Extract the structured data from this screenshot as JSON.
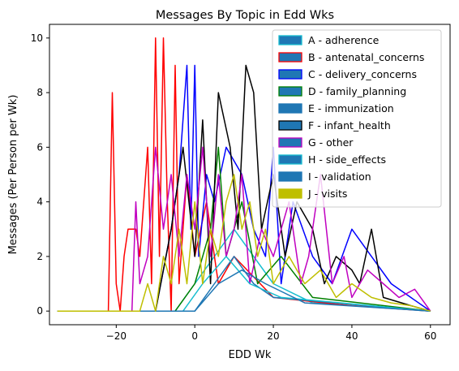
{
  "chart_data": {
    "type": "line",
    "title": "Messages By Topic in Edd Wks",
    "xlabel": "EDD Wk",
    "ylabel": "Messages (Per Person per Wk)",
    "xlim": [
      -37,
      65
    ],
    "ylim": [
      -0.5,
      10.5
    ],
    "xticks": [
      -20,
      0,
      20,
      40,
      60
    ],
    "yticks": [
      0,
      2,
      4,
      6,
      8,
      10
    ],
    "grid": false,
    "legend_position": "top-right",
    "series": [
      {
        "name": "A - adherence",
        "color": "#17becf",
        "fill": "#1f77b4",
        "points": [
          [
            -35,
            0
          ],
          [
            -5,
            0
          ],
          [
            0,
            1
          ],
          [
            5,
            2
          ],
          [
            10,
            3
          ],
          [
            15,
            2
          ],
          [
            20,
            1
          ],
          [
            30,
            0.3
          ],
          [
            60,
            0
          ]
        ]
      },
      {
        "name": "B - antenatal_concerns",
        "color": "#ff0000",
        "fill": "#1f77b4",
        "points": [
          [
            -35,
            0
          ],
          [
            -23,
            0
          ],
          [
            -22,
            0
          ],
          [
            -21,
            8
          ],
          [
            -20,
            1
          ],
          [
            -19,
            0
          ],
          [
            -18,
            2
          ],
          [
            -17,
            3
          ],
          [
            -15,
            3
          ],
          [
            -14,
            2
          ],
          [
            -12,
            6
          ],
          [
            -11,
            1
          ],
          [
            -10,
            10
          ],
          [
            -9,
            2
          ],
          [
            -8,
            10
          ],
          [
            -7,
            4
          ],
          [
            -6,
            0
          ],
          [
            -5,
            9
          ],
          [
            -4,
            1
          ],
          [
            -2,
            5
          ],
          [
            0,
            2
          ],
          [
            3,
            4
          ],
          [
            6,
            1
          ],
          [
            10,
            2
          ],
          [
            20,
            0.5
          ],
          [
            40,
            0.2
          ],
          [
            60,
            0
          ]
        ]
      },
      {
        "name": "C - delivery_concerns",
        "color": "#0000ff",
        "fill": "#1f77b4",
        "points": [
          [
            -35,
            0
          ],
          [
            -10,
            0
          ],
          [
            -6,
            3
          ],
          [
            -4,
            5
          ],
          [
            -2,
            9
          ],
          [
            -1,
            3
          ],
          [
            0,
            9
          ],
          [
            1,
            2
          ],
          [
            3,
            5
          ],
          [
            5,
            4
          ],
          [
            8,
            6
          ],
          [
            12,
            5
          ],
          [
            15,
            3
          ],
          [
            18,
            2
          ],
          [
            20,
            6
          ],
          [
            22,
            1
          ],
          [
            25,
            4
          ],
          [
            30,
            2
          ],
          [
            35,
            1
          ],
          [
            40,
            3
          ],
          [
            45,
            2
          ],
          [
            50,
            1
          ],
          [
            55,
            0.5
          ],
          [
            60,
            0
          ]
        ]
      },
      {
        "name": "D - family_planning",
        "color": "#008000",
        "fill": "#1f77b4",
        "points": [
          [
            -35,
            0
          ],
          [
            -5,
            0
          ],
          [
            0,
            1
          ],
          [
            4,
            3
          ],
          [
            6,
            6
          ],
          [
            8,
            2
          ],
          [
            12,
            4
          ],
          [
            16,
            1
          ],
          [
            22,
            2
          ],
          [
            30,
            0.5
          ],
          [
            60,
            0
          ]
        ]
      },
      {
        "name": "E - immunization",
        "color": "#1f77b4",
        "fill": "#1f77b4",
        "points": [
          [
            -35,
            0
          ],
          [
            0,
            0
          ],
          [
            5,
            1
          ],
          [
            10,
            2
          ],
          [
            15,
            1
          ],
          [
            20,
            0.5
          ],
          [
            60,
            0
          ]
        ]
      },
      {
        "name": "F - infant_health",
        "color": "#000000",
        "fill": "#1f77b4",
        "points": [
          [
            -35,
            0
          ],
          [
            -10,
            0
          ],
          [
            -6,
            3
          ],
          [
            -3,
            6
          ],
          [
            0,
            2
          ],
          [
            2,
            7
          ],
          [
            4,
            1
          ],
          [
            6,
            8
          ],
          [
            9,
            6
          ],
          [
            11,
            3
          ],
          [
            13,
            9
          ],
          [
            15,
            8
          ],
          [
            17,
            3
          ],
          [
            20,
            5
          ],
          [
            23,
            2
          ],
          [
            26,
            4
          ],
          [
            30,
            3
          ],
          [
            33,
            1
          ],
          [
            36,
            2
          ],
          [
            40,
            1.5
          ],
          [
            42,
            1
          ],
          [
            45,
            3
          ],
          [
            48,
            0.5
          ],
          [
            55,
            0.2
          ],
          [
            60,
            0
          ]
        ]
      },
      {
        "name": "G - other",
        "color": "#c000c0",
        "fill": "#1f77b4",
        "points": [
          [
            -35,
            0
          ],
          [
            -16,
            0
          ],
          [
            -15,
            4
          ],
          [
            -14,
            1
          ],
          [
            -12,
            2
          ],
          [
            -10,
            6
          ],
          [
            -8,
            3
          ],
          [
            -6,
            5
          ],
          [
            -4,
            2
          ],
          [
            -2,
            5
          ],
          [
            0,
            3
          ],
          [
            2,
            6
          ],
          [
            4,
            2
          ],
          [
            6,
            5
          ],
          [
            8,
            2
          ],
          [
            10,
            3
          ],
          [
            12,
            5
          ],
          [
            14,
            1
          ],
          [
            17,
            3
          ],
          [
            20,
            2
          ],
          [
            24,
            4
          ],
          [
            27,
            1
          ],
          [
            29,
            2
          ],
          [
            32,
            5
          ],
          [
            35,
            1
          ],
          [
            38,
            2
          ],
          [
            40,
            0.5
          ],
          [
            44,
            1.5
          ],
          [
            48,
            1
          ],
          [
            52,
            0.5
          ],
          [
            56,
            0.8
          ],
          [
            60,
            0
          ]
        ]
      },
      {
        "name": "H - side_effects",
        "color": "#17becf",
        "fill": "#1f77b4",
        "points": [
          [
            -35,
            0
          ],
          [
            -3,
            0
          ],
          [
            2,
            1
          ],
          [
            8,
            2
          ],
          [
            14,
            1
          ],
          [
            22,
            0.5
          ],
          [
            60,
            0
          ]
        ]
      },
      {
        "name": "I - validation",
        "color": "#1f77b4",
        "fill": "#1f77b4",
        "points": [
          [
            -35,
            0
          ],
          [
            0,
            0
          ],
          [
            6,
            1
          ],
          [
            12,
            1.5
          ],
          [
            18,
            1
          ],
          [
            28,
            0.3
          ],
          [
            60,
            0
          ]
        ]
      },
      {
        "name": "J - visits",
        "color": "#bfbf00",
        "fill": "#bfbf00",
        "points": [
          [
            -35,
            0
          ],
          [
            -14,
            0
          ],
          [
            -12,
            1
          ],
          [
            -10,
            0
          ],
          [
            -8,
            2
          ],
          [
            -6,
            1
          ],
          [
            -4,
            3
          ],
          [
            -2,
            1
          ],
          [
            0,
            4
          ],
          [
            2,
            1
          ],
          [
            4,
            3
          ],
          [
            6,
            2
          ],
          [
            8,
            4
          ],
          [
            10,
            5
          ],
          [
            12,
            3
          ],
          [
            14,
            4
          ],
          [
            16,
            2
          ],
          [
            18,
            3
          ],
          [
            20,
            1
          ],
          [
            24,
            2
          ],
          [
            28,
            1
          ],
          [
            32,
            1.5
          ],
          [
            36,
            0.5
          ],
          [
            40,
            1
          ],
          [
            45,
            0.5
          ],
          [
            50,
            0.3
          ],
          [
            55,
            0.2
          ],
          [
            60,
            0
          ]
        ]
      }
    ]
  }
}
